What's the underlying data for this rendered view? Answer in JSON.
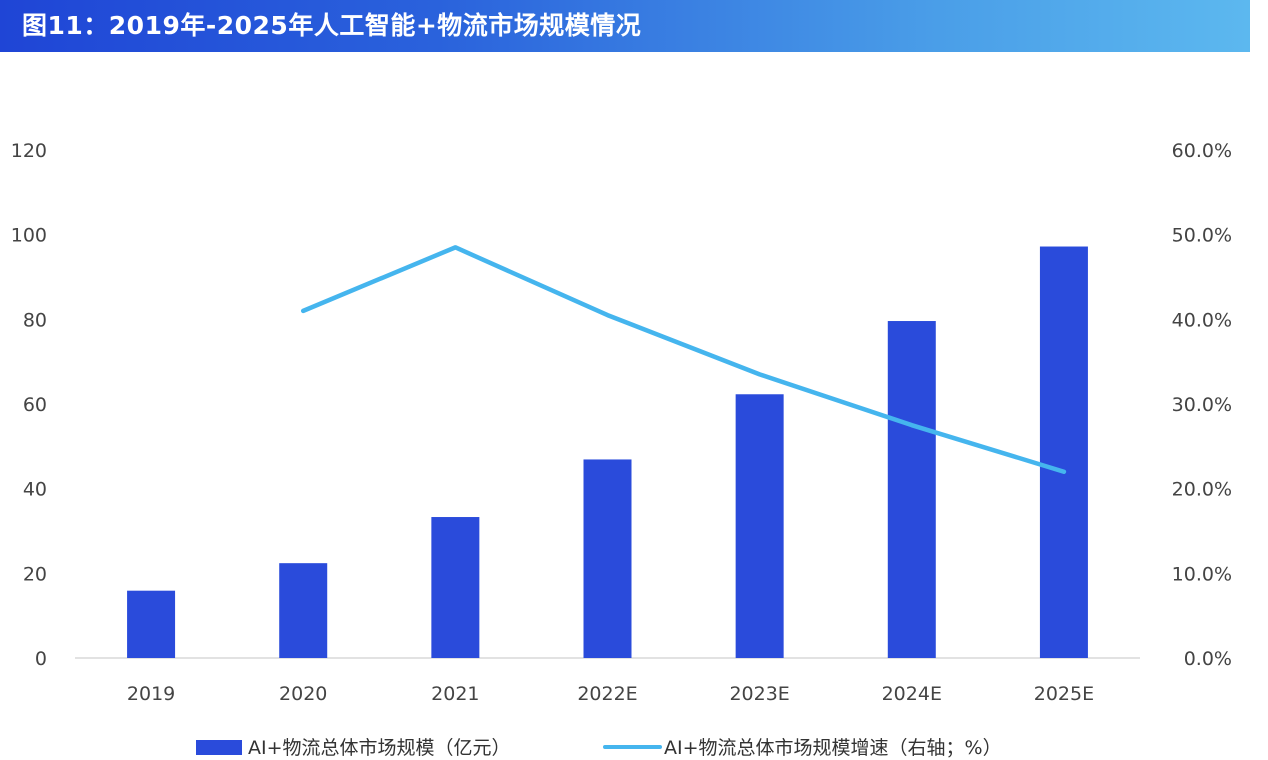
{
  "header": {
    "title": "图11：2019年-2025年人工智能+物流市场规模情况"
  },
  "colors": {
    "bar": "#2a4bdb",
    "line": "#45b5ee",
    "axis": "#d9d9d9",
    "header_start": "#1f45d6",
    "header_end": "#5cb8ef"
  },
  "chart_data": {
    "type": "bar",
    "categories": [
      "2019",
      "2020",
      "2021",
      "2022E",
      "2023E",
      "2024E",
      "2025E"
    ],
    "series": [
      {
        "name": "AI+物流总体市场规模（亿元）",
        "type": "bar",
        "axis": "left",
        "values": [
          15.9,
          22.4,
          33.3,
          46.9,
          62.3,
          79.6,
          97.2
        ]
      },
      {
        "name": "AI+物流总体市场规模增速（右轴；%）",
        "type": "line",
        "axis": "right",
        "values": [
          null,
          41.0,
          48.5,
          40.5,
          33.5,
          27.5,
          22.0
        ]
      }
    ],
    "y_left": {
      "ylim": [
        0,
        120
      ],
      "ticks": [
        "0",
        "20",
        "40",
        "60",
        "80",
        "100",
        "120"
      ]
    },
    "y_right": {
      "ylim": [
        0,
        60
      ],
      "ticks": [
        "0.0%",
        "10.0%",
        "20.0%",
        "30.0%",
        "40.0%",
        "50.0%",
        "60.0%"
      ]
    },
    "grid": false,
    "legend_position": "bottom"
  }
}
